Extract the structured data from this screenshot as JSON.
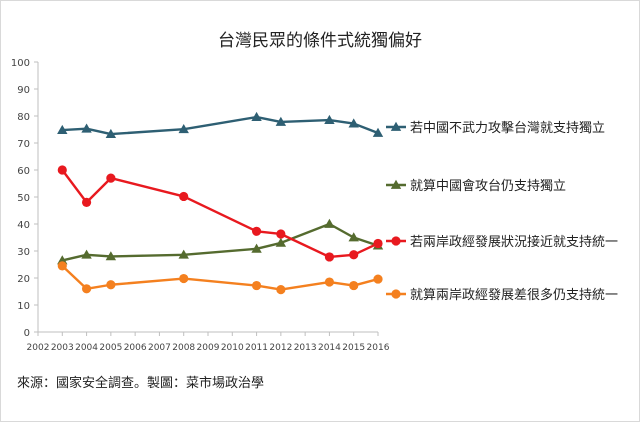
{
  "chart_data": {
    "type": "line",
    "title": "台灣民眾的條件式統獨偏好",
    "xlabel": "",
    "ylabel": "",
    "x_ticks": [
      2002,
      2003,
      2004,
      2005,
      2006,
      2007,
      2008,
      2009,
      2010,
      2011,
      2012,
      2013,
      2014,
      2015,
      2016
    ],
    "xlim": [
      2002,
      2016
    ],
    "y_ticks": [
      0,
      10,
      20,
      30,
      40,
      50,
      60,
      70,
      80,
      90,
      100
    ],
    "ylim": [
      0,
      100
    ],
    "grid": false,
    "legend_placement": "right",
    "series": [
      {
        "name": "若中國不武力攻擊台灣就支持獨立",
        "color": "#2e5f73",
        "marker": "triangle",
        "x": [
          2003,
          2004,
          2005,
          2008,
          2011,
          2012,
          2014,
          2015,
          2016
        ],
        "y": [
          74.8,
          75.3,
          73.3,
          75.1,
          79.6,
          77.8,
          78.5,
          77.2,
          73.7
        ]
      },
      {
        "name": "就算中國會攻台仍支持獨立",
        "color": "#556b2f",
        "marker": "triangle",
        "x": [
          2003,
          2004,
          2005,
          2008,
          2011,
          2012,
          2014,
          2015,
          2016
        ],
        "y": [
          26.5,
          28.6,
          28.0,
          28.6,
          30.8,
          33.0,
          40.0,
          35.0,
          32.0
        ]
      },
      {
        "name": "若兩岸政經發展狀況接近就支持統一",
        "color": "#e8191f",
        "marker": "circle",
        "x": [
          2003,
          2004,
          2005,
          2008,
          2011,
          2012,
          2014,
          2015,
          2016
        ],
        "y": [
          60.0,
          48.0,
          57.0,
          50.2,
          37.3,
          36.3,
          27.8,
          28.6,
          32.8
        ]
      },
      {
        "name": "就算兩岸政經發展差很多仍支持統一",
        "color": "#f4801f",
        "marker": "circle",
        "x": [
          2003,
          2004,
          2005,
          2008,
          2011,
          2012,
          2014,
          2015,
          2016
        ],
        "y": [
          24.5,
          16.0,
          17.5,
          19.8,
          17.2,
          15.7,
          18.5,
          17.2,
          19.6
        ]
      }
    ]
  },
  "source_note": "來源：國家安全調查。製圖：菜市場政治學"
}
